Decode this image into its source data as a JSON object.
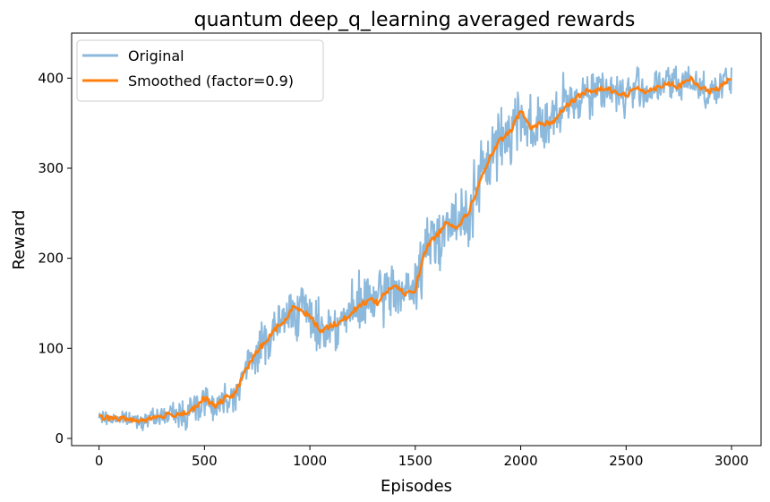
{
  "chart_data": {
    "type": "line",
    "title": "quantum deep_q_learning averaged rewards",
    "xlabel": "Episodes",
    "ylabel": "Reward",
    "xlim": [
      -130,
      3140
    ],
    "ylim": [
      -8,
      450
    ],
    "xticks": [
      0,
      500,
      1000,
      1500,
      2000,
      2500,
      3000
    ],
    "yticks": [
      0,
      100,
      200,
      300,
      400
    ],
    "grid": false,
    "legend": "top-left",
    "series": [
      {
        "name": "Original",
        "color": "#8cb9dc",
        "noise_band": [
          [
            0,
            8
          ],
          [
            300,
            10
          ],
          [
            450,
            25
          ],
          [
            550,
            18
          ],
          [
            700,
            20
          ],
          [
            800,
            30
          ],
          [
            900,
            35
          ],
          [
            1000,
            30
          ],
          [
            1100,
            30
          ],
          [
            1300,
            35
          ],
          [
            1500,
            35
          ],
          [
            1600,
            40
          ],
          [
            1800,
            45
          ],
          [
            2000,
            40
          ],
          [
            2200,
            35
          ],
          [
            2500,
            25
          ],
          [
            3000,
            22
          ]
        ]
      },
      {
        "name": "Smoothed (factor=0.9)",
        "color": "#ff7f0e",
        "x": [
          0,
          100,
          200,
          300,
          400,
          450,
          500,
          550,
          600,
          650,
          680,
          720,
          760,
          800,
          850,
          880,
          920,
          950,
          1000,
          1050,
          1100,
          1150,
          1200,
          1250,
          1300,
          1320,
          1350,
          1400,
          1450,
          1500,
          1530,
          1560,
          1600,
          1650,
          1700,
          1750,
          1800,
          1850,
          1900,
          1950,
          2000,
          2020,
          2050,
          2100,
          2150,
          2200,
          2250,
          2300,
          2350,
          2400,
          2450,
          2500,
          2550,
          2600,
          2650,
          2700,
          2750,
          2800,
          2850,
          2900,
          2950,
          3000
        ],
        "y": [
          23,
          22,
          20,
          25,
          28,
          32,
          45,
          35,
          45,
          50,
          70,
          85,
          100,
          110,
          125,
          130,
          145,
          145,
          135,
          120,
          125,
          130,
          140,
          150,
          155,
          150,
          160,
          170,
          160,
          165,
          195,
          215,
          225,
          240,
          235,
          250,
          280,
          310,
          330,
          340,
          365,
          355,
          345,
          350,
          350,
          365,
          375,
          385,
          385,
          390,
          385,
          380,
          390,
          385,
          390,
          395,
          390,
          400,
          390,
          385,
          390,
          400
        ]
      }
    ]
  }
}
